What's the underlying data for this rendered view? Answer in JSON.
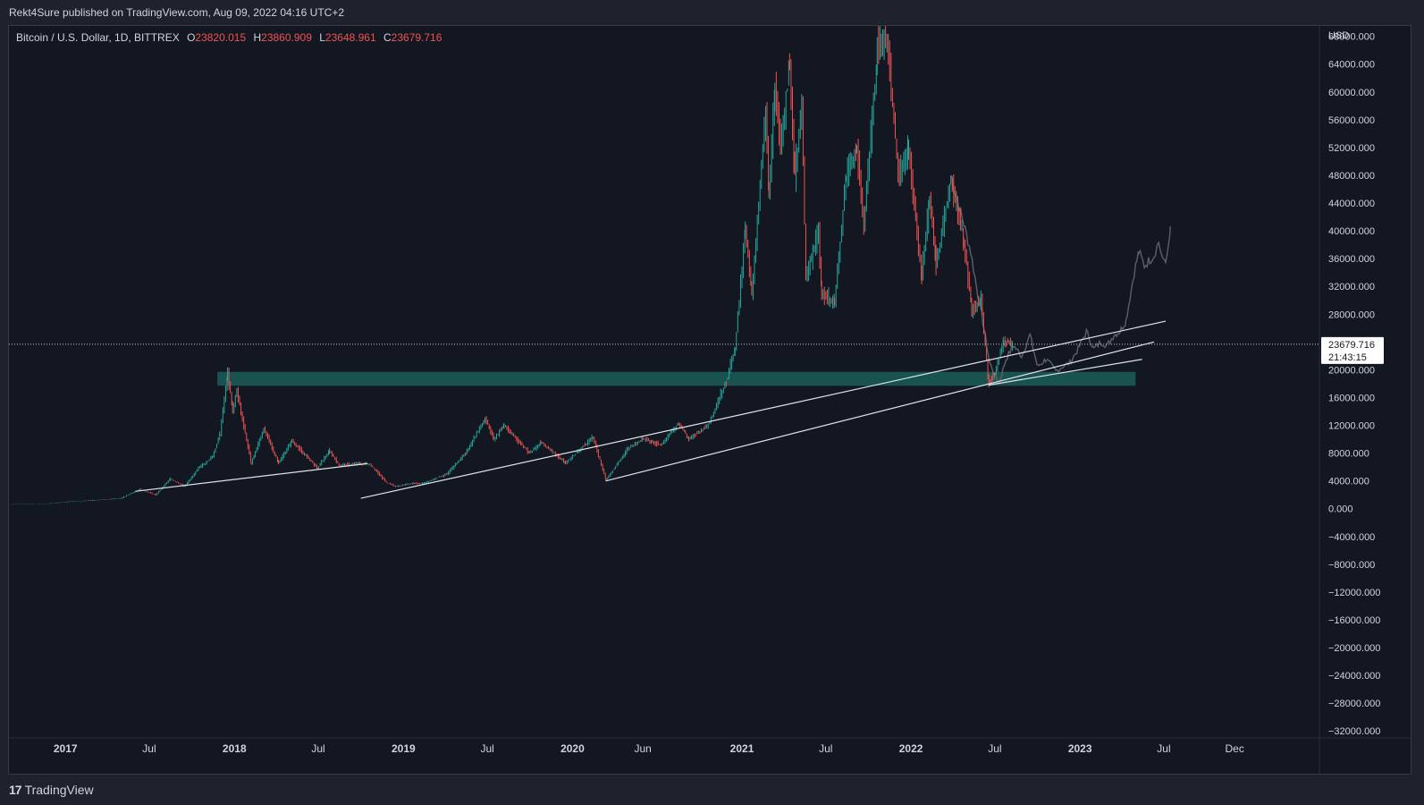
{
  "header": {
    "published_by": "Rekt4Sure published on TradingView.com, Aug 09, 2022 04:16 UTC+2"
  },
  "symbol": {
    "name": "Bitcoin / U.S. Dollar, 1D, BITTREX",
    "open_label": "O",
    "open": "23820.015",
    "high_label": "H",
    "high": "23860.909",
    "low_label": "L",
    "low": "23648.961",
    "close_label": "C",
    "close": "23679.716"
  },
  "price_tag": {
    "price": "23679.716",
    "countdown": "21:43:15"
  },
  "footer": {
    "brand": "TradingView",
    "logo_mark": "17"
  },
  "colors": {
    "background": "#131722",
    "frame": "#1e222d",
    "up": "#26a69a",
    "down": "#ef5350",
    "text": "#d1d4dc",
    "projection": "#5d606b",
    "zone": "#1b5e57",
    "trendline": "#e0e3eb"
  },
  "chart_data": {
    "type": "line",
    "currency": "USD",
    "y_unit_label": "USD",
    "ylim": [
      -33000,
      69500
    ],
    "y_ticks": [
      68000,
      64000,
      60000,
      56000,
      52000,
      48000,
      44000,
      40000,
      36000,
      32000,
      28000,
      20000,
      16000,
      12000,
      8000,
      4000,
      0,
      -4000,
      -8000,
      -12000,
      -16000,
      -20000,
      -24000,
      -28000,
      -32000
    ],
    "y_tick_labels": [
      "68000.000",
      "64000.000",
      "60000.000",
      "56000.000",
      "52000.000",
      "48000.000",
      "44000.000",
      "40000.000",
      "36000.000",
      "32000.000",
      "28000.000",
      "20000.000",
      "16000.000",
      "12000.000",
      "8000.000",
      "4000.000",
      "0.000",
      "−4000.000",
      "−8000.000",
      "−12000.000",
      "−16000.000",
      "−20000.000",
      "−24000.000",
      "−28000.000",
      "−32000.000"
    ],
    "x_range": [
      "2016-09-01",
      "2024-06-01"
    ],
    "x_ticks": [
      {
        "date": "2017-01-01",
        "label": "2017",
        "bold": true
      },
      {
        "date": "2017-07-01",
        "label": "Jul",
        "bold": false
      },
      {
        "date": "2018-01-01",
        "label": "2018",
        "bold": true
      },
      {
        "date": "2018-07-01",
        "label": "Jul",
        "bold": false
      },
      {
        "date": "2019-01-01",
        "label": "2019",
        "bold": true
      },
      {
        "date": "2019-07-01",
        "label": "Jul",
        "bold": false
      },
      {
        "date": "2020-01-01",
        "label": "2020",
        "bold": true
      },
      {
        "date": "2020-06-01",
        "label": "Jun",
        "bold": false
      },
      {
        "date": "2021-01-01",
        "label": "2021",
        "bold": true
      },
      {
        "date": "2021-07-01",
        "label": "Jul",
        "bold": false
      },
      {
        "date": "2022-01-01",
        "label": "2022",
        "bold": true
      },
      {
        "date": "2022-07-01",
        "label": "Jul",
        "bold": false
      },
      {
        "date": "2023-01-01",
        "label": "2023",
        "bold": true
      },
      {
        "date": "2023-07-01",
        "label": "Jul",
        "bold": false
      },
      {
        "date": "2023-12-01",
        "label": "Dec",
        "bold": false
      }
    ],
    "current_price": 23679.716,
    "series": [
      {
        "role": "price",
        "points": [
          [
            "2016-09-01",
            600
          ],
          [
            "2016-12-01",
            750
          ],
          [
            "2017-01-05",
            1000
          ],
          [
            "2017-03-01",
            1200
          ],
          [
            "2017-05-01",
            1500
          ],
          [
            "2017-06-10",
            2800
          ],
          [
            "2017-07-15",
            2000
          ],
          [
            "2017-08-15",
            4300
          ],
          [
            "2017-09-15",
            3200
          ],
          [
            "2017-10-15",
            5800
          ],
          [
            "2017-11-15",
            7500
          ],
          [
            "2017-12-01",
            10800
          ],
          [
            "2017-12-17",
            19500
          ],
          [
            "2017-12-28",
            14000
          ],
          [
            "2018-01-06",
            17000
          ],
          [
            "2018-02-06",
            6500
          ],
          [
            "2018-03-05",
            11500
          ],
          [
            "2018-04-06",
            6600
          ],
          [
            "2018-05-05",
            9800
          ],
          [
            "2018-06-29",
            5800
          ],
          [
            "2018-07-25",
            8400
          ],
          [
            "2018-08-15",
            6200
          ],
          [
            "2018-09-20",
            6500
          ],
          [
            "2018-10-20",
            6450
          ],
          [
            "2018-11-25",
            3800
          ],
          [
            "2018-12-15",
            3200
          ],
          [
            "2019-01-15",
            3600
          ],
          [
            "2019-02-15",
            3700
          ],
          [
            "2019-04-05",
            5000
          ],
          [
            "2019-05-15",
            8000
          ],
          [
            "2019-06-26",
            13000
          ],
          [
            "2019-07-15",
            10000
          ],
          [
            "2019-08-06",
            12000
          ],
          [
            "2019-09-30",
            8000
          ],
          [
            "2019-10-26",
            9500
          ],
          [
            "2019-12-17",
            6600
          ],
          [
            "2020-02-14",
            10300
          ],
          [
            "2020-03-13",
            4100
          ],
          [
            "2020-04-30",
            8700
          ],
          [
            "2020-06-01",
            10000
          ],
          [
            "2020-07-10",
            9200
          ],
          [
            "2020-08-17",
            12300
          ],
          [
            "2020-09-08",
            10000
          ],
          [
            "2020-10-20",
            12000
          ],
          [
            "2020-11-10",
            15500
          ],
          [
            "2020-12-01",
            19000
          ],
          [
            "2020-12-17",
            23000
          ],
          [
            "2021-01-08",
            40000
          ],
          [
            "2021-01-22",
            31000
          ],
          [
            "2021-02-21",
            57000
          ],
          [
            "2021-02-28",
            45000
          ],
          [
            "2021-03-13",
            61000
          ],
          [
            "2021-03-25",
            52000
          ],
          [
            "2021-04-14",
            64000
          ],
          [
            "2021-04-25",
            48000
          ],
          [
            "2021-05-10",
            58000
          ],
          [
            "2021-05-19",
            33000
          ],
          [
            "2021-06-15",
            40000
          ],
          [
            "2021-06-22",
            31000
          ],
          [
            "2021-07-20",
            29800
          ],
          [
            "2021-08-14",
            48000
          ],
          [
            "2021-09-06",
            52000
          ],
          [
            "2021-09-21",
            40500
          ],
          [
            "2021-10-20",
            66000
          ],
          [
            "2021-11-10",
            68500
          ],
          [
            "2021-12-04",
            48000
          ],
          [
            "2021-12-27",
            51500
          ],
          [
            "2022-01-24",
            33500
          ],
          [
            "2022-02-10",
            45000
          ],
          [
            "2022-02-24",
            35000
          ],
          [
            "2022-03-28",
            47500
          ],
          [
            "2022-04-25",
            38500
          ],
          [
            "2022-05-12",
            28500
          ],
          [
            "2022-06-01",
            30000
          ],
          [
            "2022-06-18",
            17800
          ],
          [
            "2022-07-01",
            19500
          ],
          [
            "2022-07-20",
            24200
          ],
          [
            "2022-08-08",
            23680
          ]
        ]
      },
      {
        "role": "projection",
        "points": [
          [
            "2022-03-28",
            48000
          ],
          [
            "2022-04-25",
            41000
          ],
          [
            "2022-05-10",
            37000
          ],
          [
            "2022-05-25",
            31000
          ],
          [
            "2022-06-05",
            27000
          ],
          [
            "2022-06-20",
            21000
          ],
          [
            "2022-07-10",
            18000
          ],
          [
            "2022-07-25",
            21500
          ],
          [
            "2022-08-10",
            23500
          ],
          [
            "2022-08-28",
            22000
          ],
          [
            "2022-09-15",
            25000
          ],
          [
            "2022-10-01",
            20500
          ],
          [
            "2022-10-20",
            21500
          ],
          [
            "2022-11-10",
            19800
          ],
          [
            "2022-11-25",
            20500
          ],
          [
            "2022-12-10",
            21000
          ],
          [
            "2022-12-28",
            23000
          ],
          [
            "2023-01-15",
            25500
          ],
          [
            "2023-01-31",
            23000
          ],
          [
            "2023-02-15",
            24000
          ],
          [
            "2023-03-01",
            23500
          ],
          [
            "2023-03-15",
            25000
          ],
          [
            "2023-03-28",
            25500
          ],
          [
            "2023-04-10",
            27000
          ],
          [
            "2023-04-28",
            34000
          ],
          [
            "2023-05-08",
            37000
          ],
          [
            "2023-05-20",
            35000
          ],
          [
            "2023-06-10",
            36500
          ],
          [
            "2023-06-20",
            38500
          ],
          [
            "2023-06-26",
            36000
          ],
          [
            "2023-07-08",
            36000
          ],
          [
            "2023-07-15",
            40000
          ]
        ]
      }
    ],
    "trendlines": [
      {
        "from": [
          "2017-06-01",
          2500
        ],
        "to": [
          "2018-10-15",
          6500
        ]
      },
      {
        "from": [
          "2018-10-01",
          1500
        ],
        "to": [
          "2023-07-05",
          27000
        ]
      },
      {
        "from": [
          "2020-03-13",
          4000
        ],
        "to": [
          "2023-06-10",
          24000
        ]
      },
      {
        "from": [
          "2022-06-18",
          17800
        ],
        "to": [
          "2023-05-15",
          21500
        ]
      }
    ],
    "support_zone": {
      "from": "2017-11-25",
      "to": "2023-05-01",
      "low": 17700,
      "high": 19700
    }
  }
}
